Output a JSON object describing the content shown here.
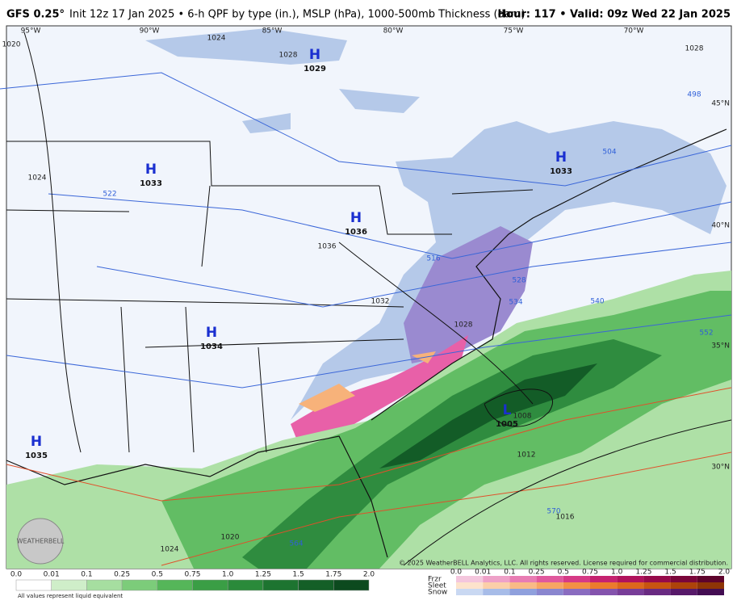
{
  "header": {
    "model": "GFS 0.25°",
    "description": "Init 12z 17 Jan 2025 • 6-h QPF by type (in.), MSLP (hPa), 1000-500mb Thickness (dam)",
    "valid": "Hour: 117 • Valid: 09z Wed 22 Jan 2025"
  },
  "longitudes": [
    "95°W",
    "90°W",
    "85°W",
    "80°W",
    "75°W",
    "70°W"
  ],
  "latitudes": [
    "45°N",
    "40°N",
    "35°N",
    "30°N"
  ],
  "centers": [
    {
      "symbol": "H",
      "pressure": "1029"
    },
    {
      "symbol": "H",
      "pressure": "1033"
    },
    {
      "symbol": "H",
      "pressure": "1036"
    },
    {
      "symbol": "H",
      "pressure": "1033"
    },
    {
      "symbol": "H",
      "pressure": "1034"
    },
    {
      "symbol": "H",
      "pressure": "1035"
    },
    {
      "symbol": "L",
      "pressure": "1005"
    }
  ],
  "isobar_labels": [
    "1020",
    "1024",
    "1028",
    "1024",
    "1036",
    "1032",
    "1028",
    "1008",
    "1012",
    "1016",
    "1020",
    "1024",
    "1028"
  ],
  "thickness_labels": [
    "522",
    "516",
    "528",
    "534",
    "540",
    "504",
    "498",
    "552",
    "570",
    "564"
  ],
  "legend": {
    "rain_ticks": [
      "0.0",
      "0.01",
      "0.1",
      "0.25",
      "0.5",
      "0.75",
      "1.0",
      "1.25",
      "1.5",
      "1.75",
      "2.0"
    ],
    "footnote": "All values represent liquid equivalent",
    "types": [
      "Frzr",
      "Sleet",
      "Snow"
    ],
    "type_ticks": [
      "0.0",
      "0.01",
      "0.1",
      "0.25",
      "0.5",
      "0.75",
      "1.0",
      "1.25",
      "1.5",
      "1.75",
      "2.0"
    ]
  },
  "copyright": "© 2025 WeatherBELL Analytics, LLC. All rights reserved. License required for commercial distribution.",
  "logo": "WEATHERBELL"
}
